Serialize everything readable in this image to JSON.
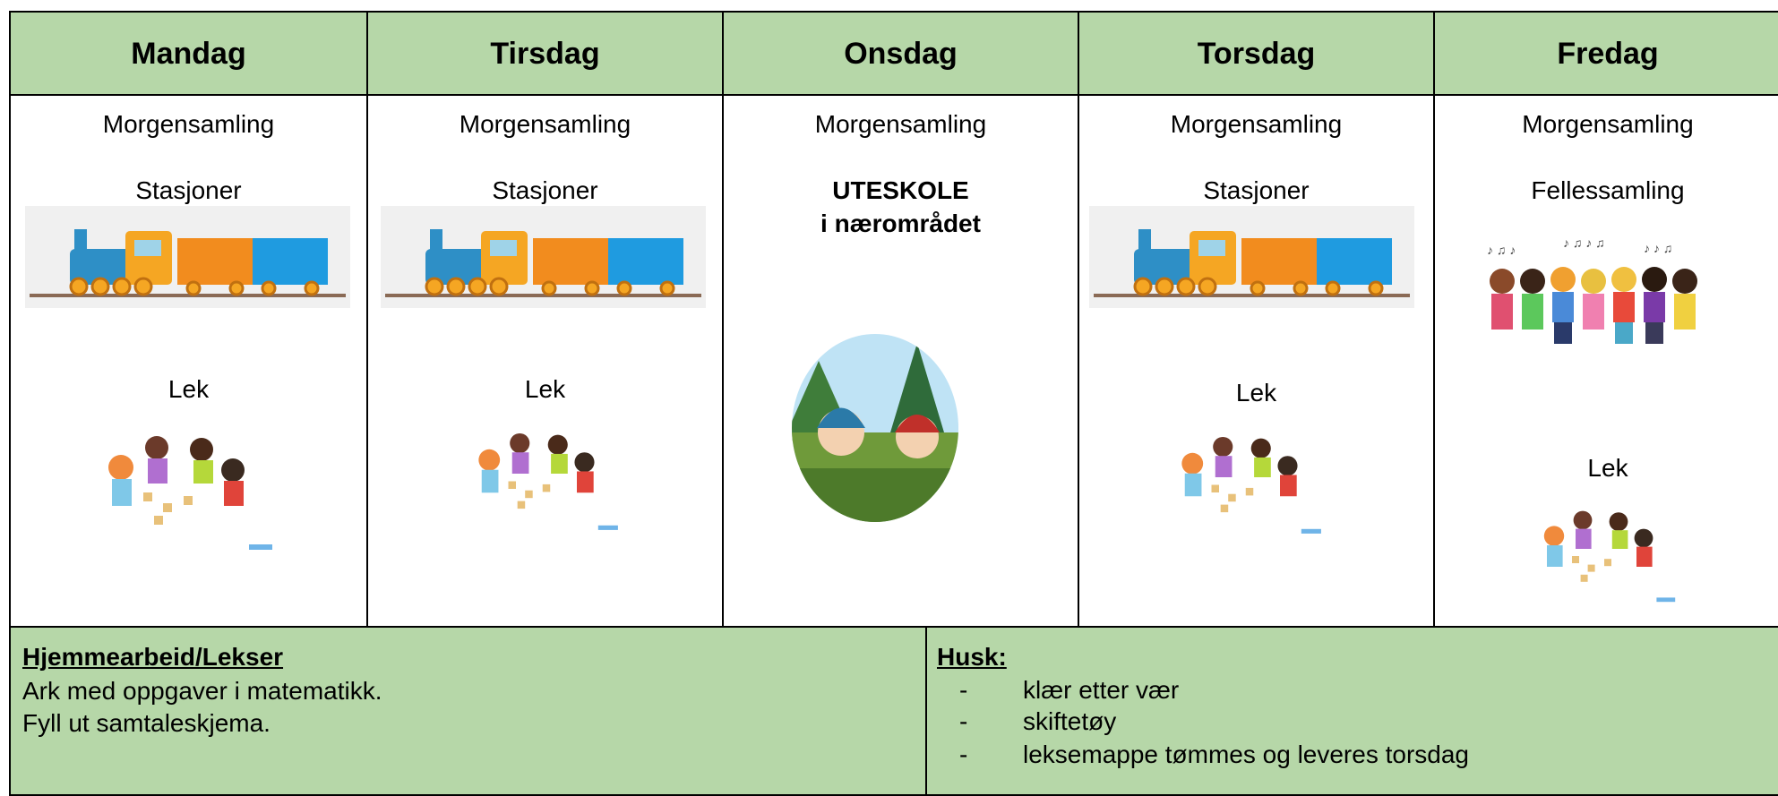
{
  "header": {
    "days": [
      "Mandag",
      "Tirsdag",
      "Onsdag",
      "Torsdag",
      "Fredag"
    ]
  },
  "days": [
    {
      "activities": [
        "Morgensamling",
        "Stasjoner",
        "Lek"
      ]
    },
    {
      "activities": [
        "Morgensamling",
        "Stasjoner",
        "Lek"
      ]
    },
    {
      "activities": [
        "Morgensamling",
        "UTESKOLE",
        "i nærområdet"
      ]
    },
    {
      "activities": [
        "Morgensamling",
        "Stasjoner",
        "Lek"
      ]
    },
    {
      "activities": [
        "Morgensamling",
        "Fellessamling",
        "Lek"
      ]
    }
  ],
  "homework": {
    "title": "Hjemmearbeid/Lekser",
    "lines": [
      "Ark med oppgaver i matematikk.",
      "Fyll ut samtaleskjema."
    ]
  },
  "remember": {
    "title": "Husk:",
    "items": [
      "klær etter vær",
      "skiftetøy",
      "leksemappe tømmes og leveres torsdag"
    ]
  }
}
